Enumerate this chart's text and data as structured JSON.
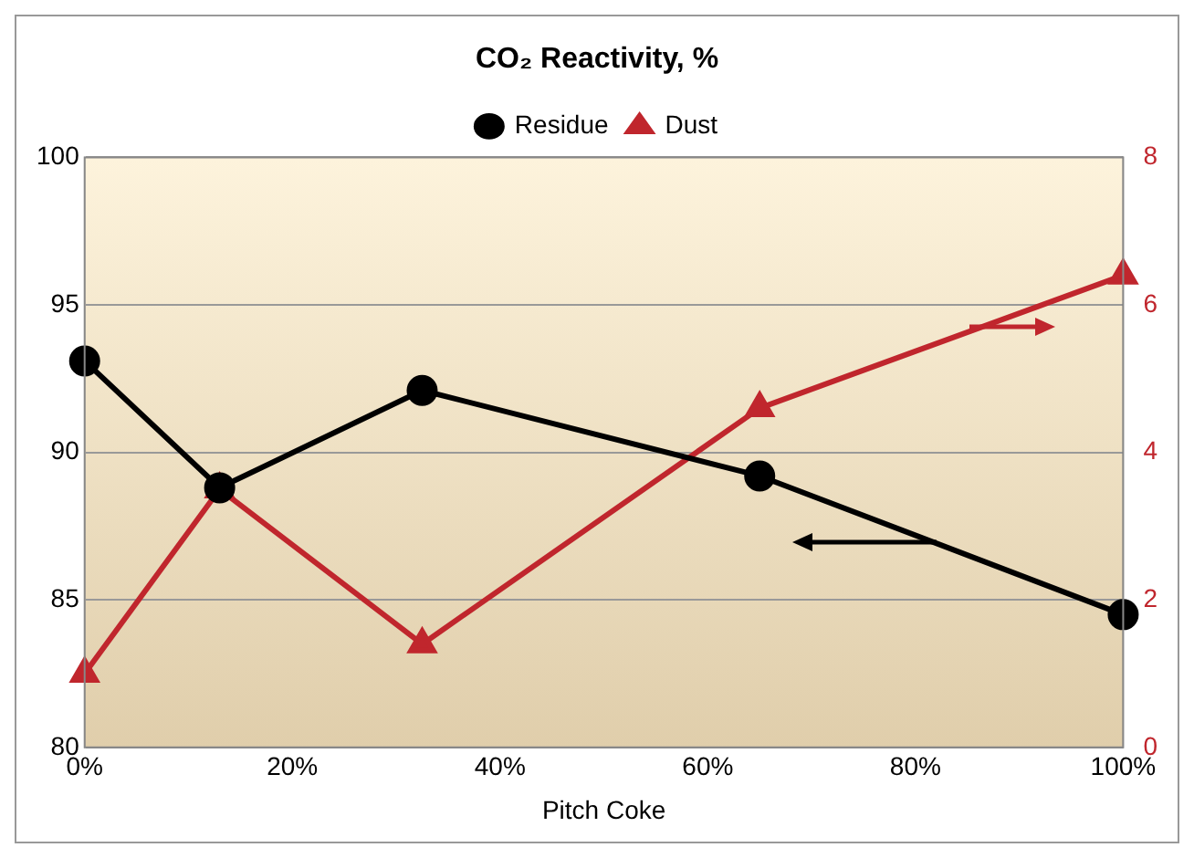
{
  "chart_data": {
    "type": "line",
    "title": "CO₂ Reactivity, %",
    "xlabel": "Pitch Coke",
    "x": [
      0,
      13,
      32.5,
      65,
      100
    ],
    "series": [
      {
        "name": "Residue",
        "color": "#000000",
        "values": [
          93.1,
          88.8,
          92.1,
          89.2,
          84.5
        ],
        "marker": "circle"
      },
      {
        "name": "Dust",
        "color": "#c0262d",
        "values": [
          1.0,
          3.5,
          1.4,
          4.6,
          6.4
        ],
        "axis": "y2",
        "marker": "triangle"
      }
    ],
    "xlim": [
      0,
      100
    ],
    "xticks": [
      {
        "value": 0,
        "label": "0%"
      },
      {
        "value": 20,
        "label": "20%"
      },
      {
        "value": 40,
        "label": "40%"
      },
      {
        "value": 60,
        "label": "60%"
      },
      {
        "value": 80,
        "label": "80%"
      },
      {
        "value": 100,
        "label": "100%"
      }
    ],
    "ylim": [
      80,
      100
    ],
    "yticks": [
      80,
      85,
      90,
      95,
      100
    ],
    "y2lim": [
      0,
      8
    ],
    "y2ticks": [
      0,
      2,
      4,
      6,
      8
    ],
    "grid": "y",
    "legend": "top",
    "line_style": "solid"
  }
}
